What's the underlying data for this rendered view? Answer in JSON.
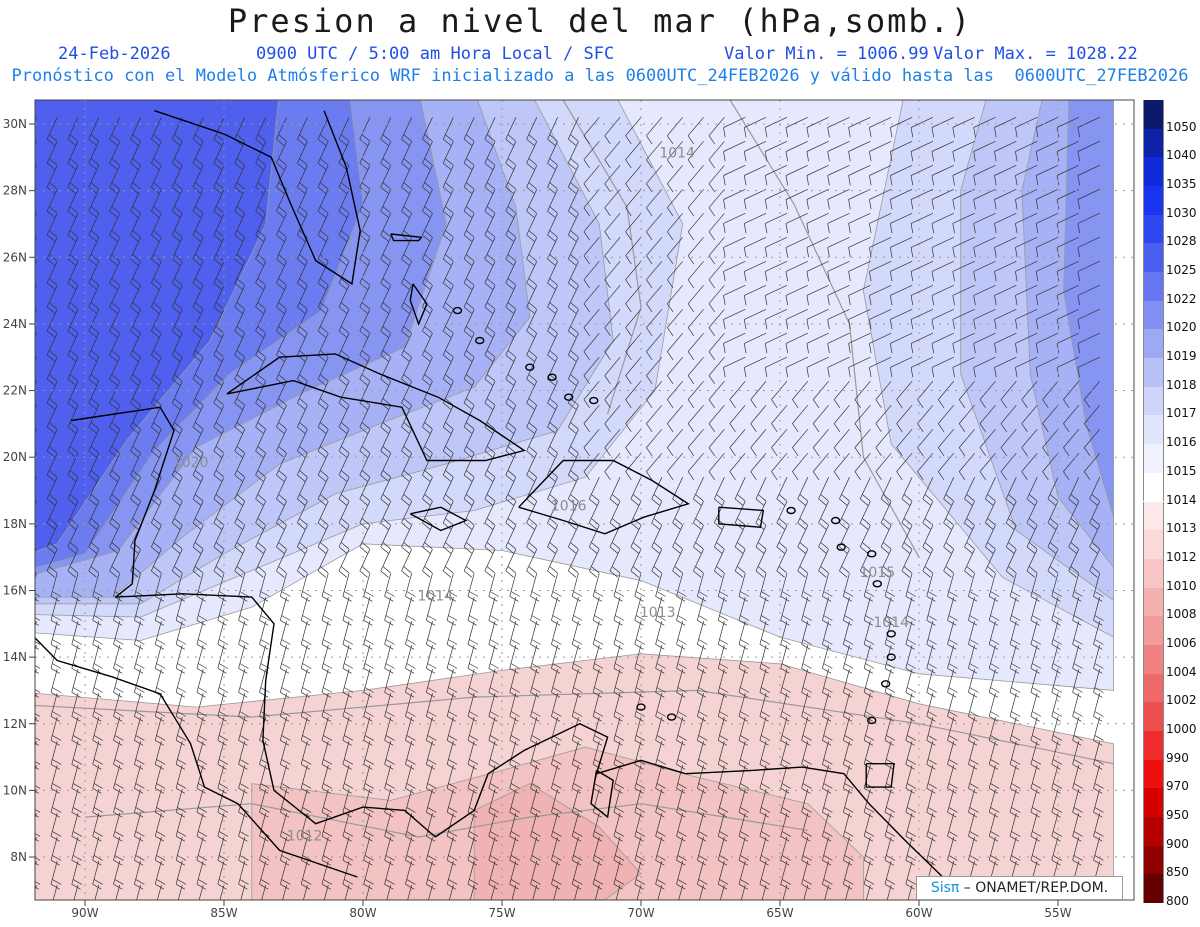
{
  "header": {
    "title": "Presion a nivel del mar (hPa,somb.)",
    "date": "24-Feb-2026",
    "time": "0900 UTC / 5:00 am Hora Local / SFC",
    "valmin": "Valor Min. = 1006.99",
    "valmax": "Valor Max. = 1028.22",
    "subtitle": "Pronóstico con el Modelo Atmósferico WRF inicializado a las 0600UTC_24FEB2026 y válido hasta las  0600UTC_27FEB2026"
  },
  "axes": {
    "lon_labels": [
      "90W",
      "85W",
      "80W",
      "75W",
      "70W",
      "65W",
      "60W",
      "55W"
    ],
    "lat_labels": [
      "30N",
      "28N",
      "26N",
      "24N",
      "22N",
      "20N",
      "18N",
      "16N",
      "14N",
      "12N",
      "10N",
      "8N"
    ]
  },
  "contour_labels": [
    {
      "text": "1014",
      "lon": -68.7,
      "lat": 29.0
    },
    {
      "text": "1020",
      "lon": -86.2,
      "lat": 19.7
    },
    {
      "text": "1014",
      "lon": -77.4,
      "lat": 15.7
    },
    {
      "text": "1013",
      "lon": -69.4,
      "lat": 15.2
    },
    {
      "text": "1015",
      "lon": -61.5,
      "lat": 16.4
    },
    {
      "text": "1014",
      "lon": -61.0,
      "lat": 14.9
    },
    {
      "text": "1012",
      "lon": -82.1,
      "lat": 8.5
    },
    {
      "text": "1016",
      "lon": -72.6,
      "lat": 18.4
    }
  ],
  "colorbar": {
    "levels": [
      "1050",
      "1040",
      "1035",
      "1030",
      "1028",
      "1025",
      "1022",
      "1020",
      "1019",
      "1018",
      "1017",
      "1016",
      "1015",
      "1014",
      "1013",
      "1012",
      "1010",
      "1008",
      "1006",
      "1004",
      "1002",
      "1000",
      "990",
      "970",
      "950",
      "900",
      "850",
      "800"
    ],
    "colors": [
      "#0b1a6b",
      "#0d22a6",
      "#0f2ad8",
      "#1a35f0",
      "#2f47f0",
      "#4a5ef0",
      "#6676f1",
      "#8290f3",
      "#9ea9f5",
      "#b8c1f8",
      "#cfd5fa",
      "#e2e6fc",
      "#f0f2fe",
      "#ffffff",
      "#fce8e8",
      "#fbd9d9",
      "#f8c6c6",
      "#f5b0b0",
      "#f39a9a",
      "#f08282",
      "#ee6a6a",
      "#ec4e4e",
      "#ef2b2b",
      "#ee0f0f",
      "#d40000",
      "#b30000",
      "#8e0000",
      "#650000"
    ]
  },
  "credit": {
    "brand": "Sisπ",
    "text": " – ONAMET/REP.DOM."
  }
}
